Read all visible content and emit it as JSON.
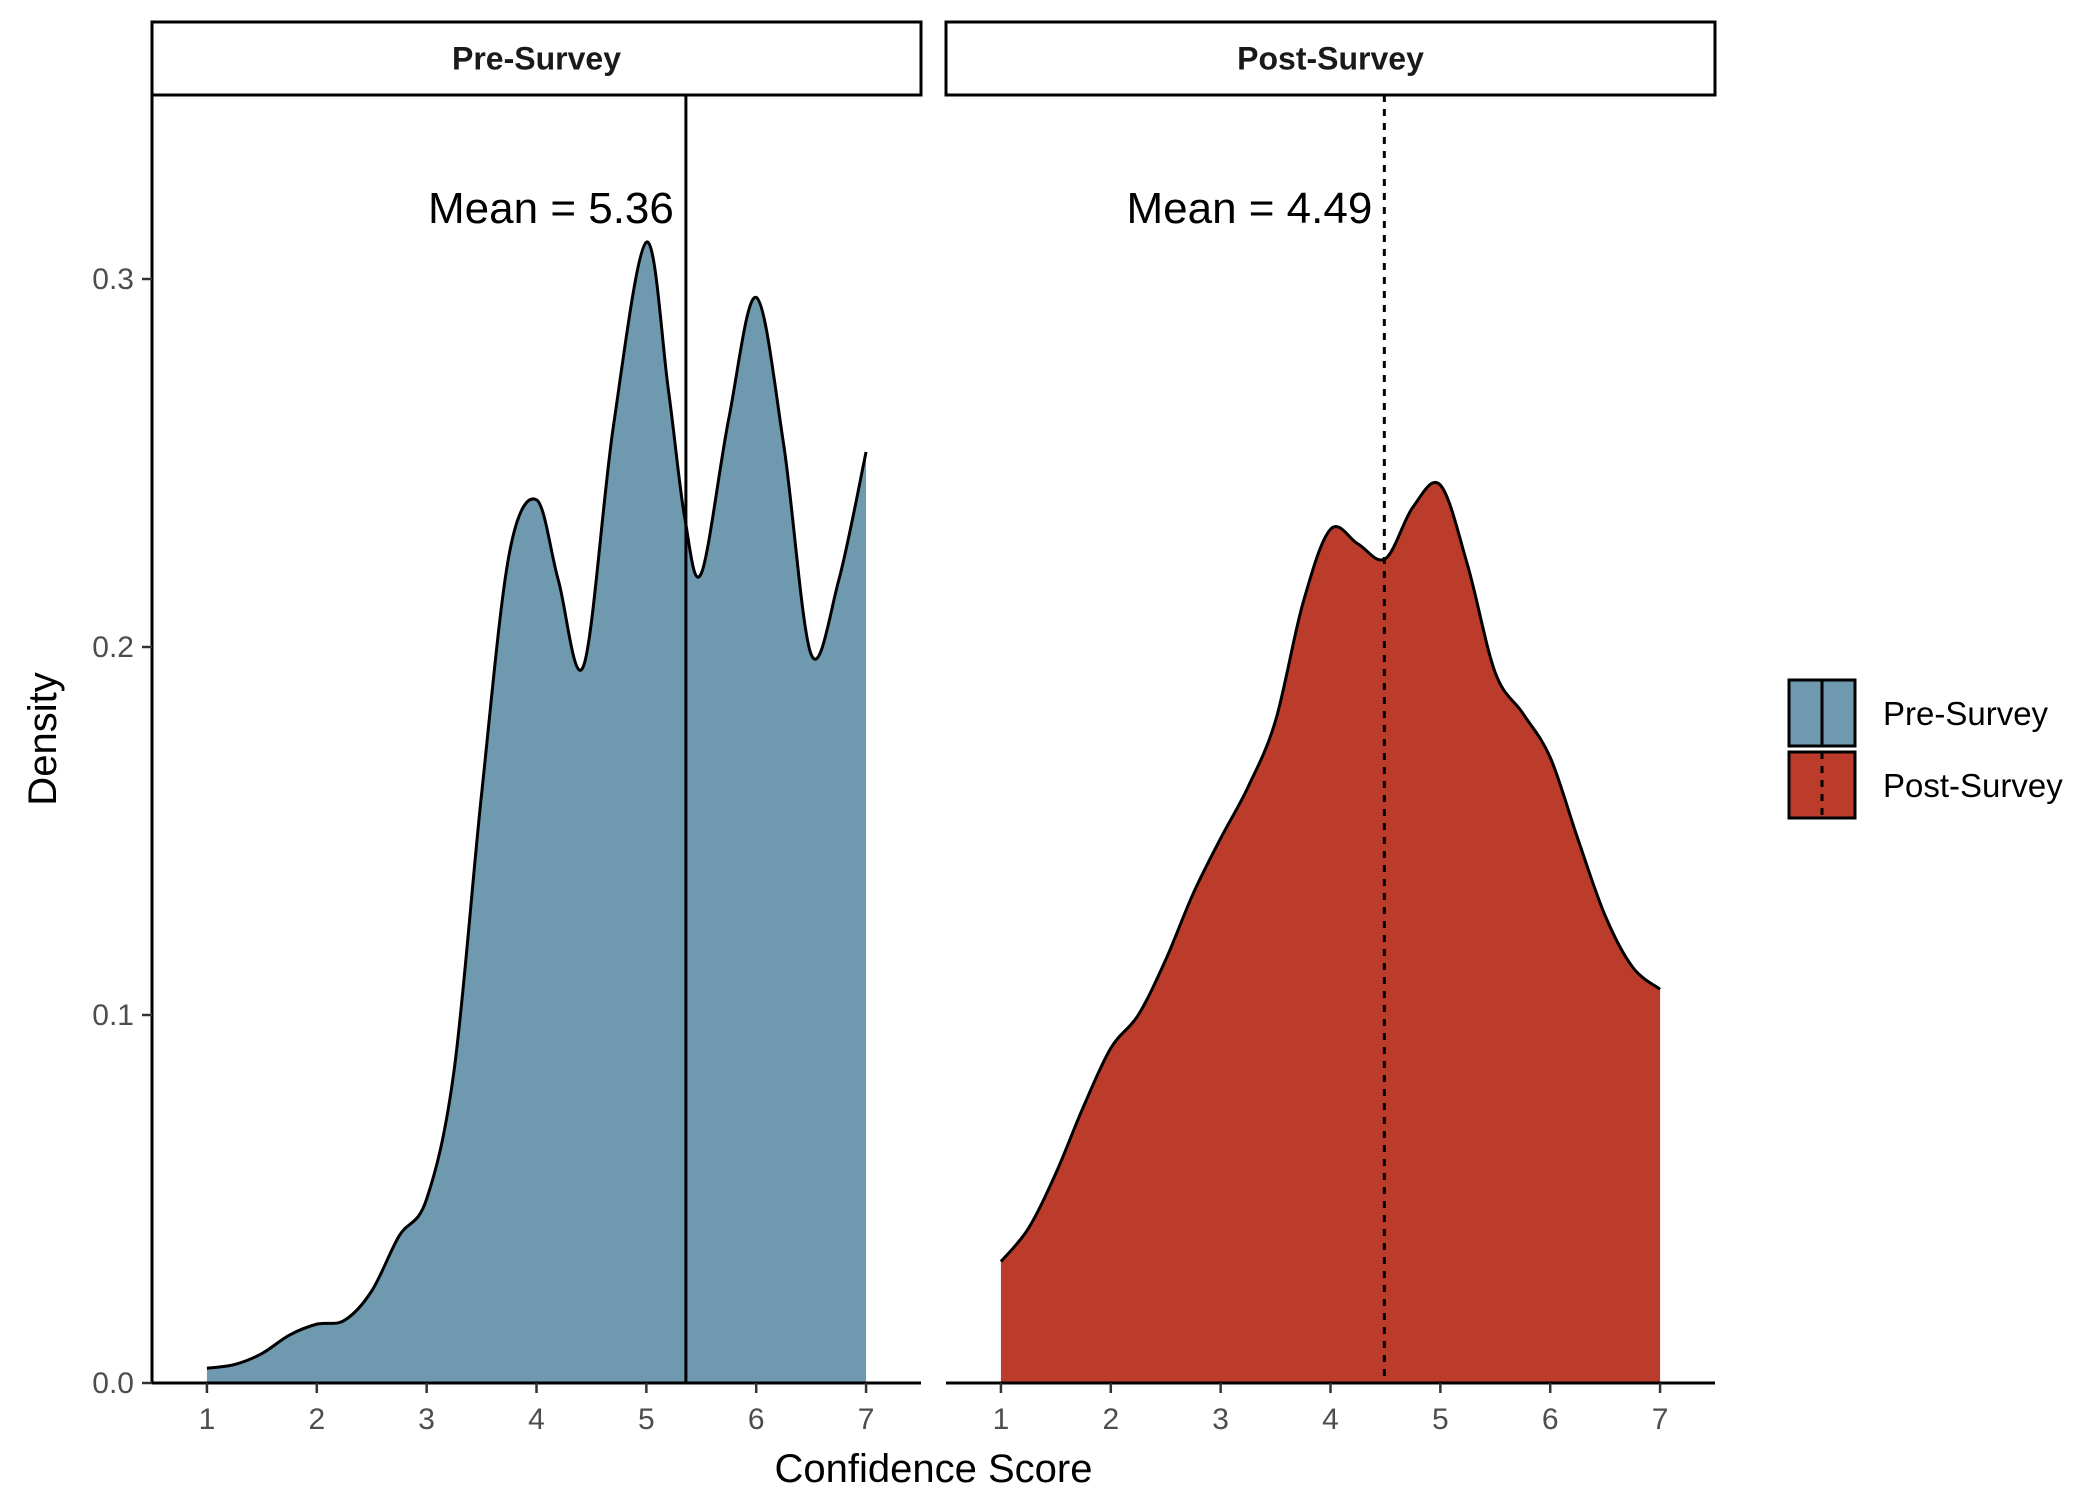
{
  "chart_data": {
    "type": "area",
    "chart_kind": "faceted density plot",
    "xlabel": "Confidence Score",
    "ylabel": "Density",
    "xlim": [
      0.5,
      7.5
    ],
    "ylim": [
      0,
      0.35
    ],
    "x_ticks": [
      "1",
      "2",
      "3",
      "4",
      "5",
      "6",
      "7"
    ],
    "y_ticks": [
      "0.0",
      "0.1",
      "0.2",
      "0.3"
    ],
    "grid": false,
    "legend_position": "right",
    "legend": [
      {
        "label": "Pre-Survey",
        "fill": "#6f99ae",
        "line": "solid"
      },
      {
        "label": "Post-Survey",
        "fill": "#bb3c2b",
        "line": "dashed"
      }
    ],
    "panels": [
      {
        "strip_label": "Pre-Survey",
        "fill": "#6f99ae",
        "mean_value": 5.36,
        "mean_label": "Mean = 5.36",
        "mean_line": "solid",
        "x": [
          1.0,
          1.25,
          1.5,
          1.75,
          2.0,
          2.25,
          2.5,
          2.75,
          3.0,
          3.25,
          3.5,
          3.75,
          4.0,
          4.2,
          4.43,
          4.7,
          5.0,
          5.2,
          5.35,
          5.5,
          5.75,
          6.0,
          6.25,
          6.5,
          6.75,
          7.0
        ],
        "y": [
          0.004,
          0.005,
          0.008,
          0.013,
          0.016,
          0.017,
          0.025,
          0.04,
          0.05,
          0.085,
          0.16,
          0.225,
          0.24,
          0.218,
          0.195,
          0.26,
          0.31,
          0.27,
          0.235,
          0.22,
          0.262,
          0.295,
          0.255,
          0.198,
          0.218,
          0.253
        ]
      },
      {
        "strip_label": "Post-Survey",
        "fill": "#bb3c2b",
        "mean_value": 4.49,
        "mean_label": "Mean = 4.49",
        "mean_line": "dashed",
        "x": [
          1.0,
          1.25,
          1.5,
          1.75,
          2.0,
          2.25,
          2.5,
          2.75,
          3.0,
          3.25,
          3.5,
          3.75,
          4.0,
          4.25,
          4.5,
          4.75,
          5.0,
          5.25,
          5.5,
          5.75,
          6.0,
          6.25,
          6.5,
          6.75,
          7.0
        ],
        "y": [
          0.033,
          0.042,
          0.057,
          0.075,
          0.091,
          0.1,
          0.115,
          0.133,
          0.148,
          0.162,
          0.18,
          0.212,
          0.232,
          0.228,
          0.224,
          0.238,
          0.244,
          0.222,
          0.193,
          0.182,
          0.17,
          0.148,
          0.127,
          0.113,
          0.107
        ]
      }
    ]
  }
}
